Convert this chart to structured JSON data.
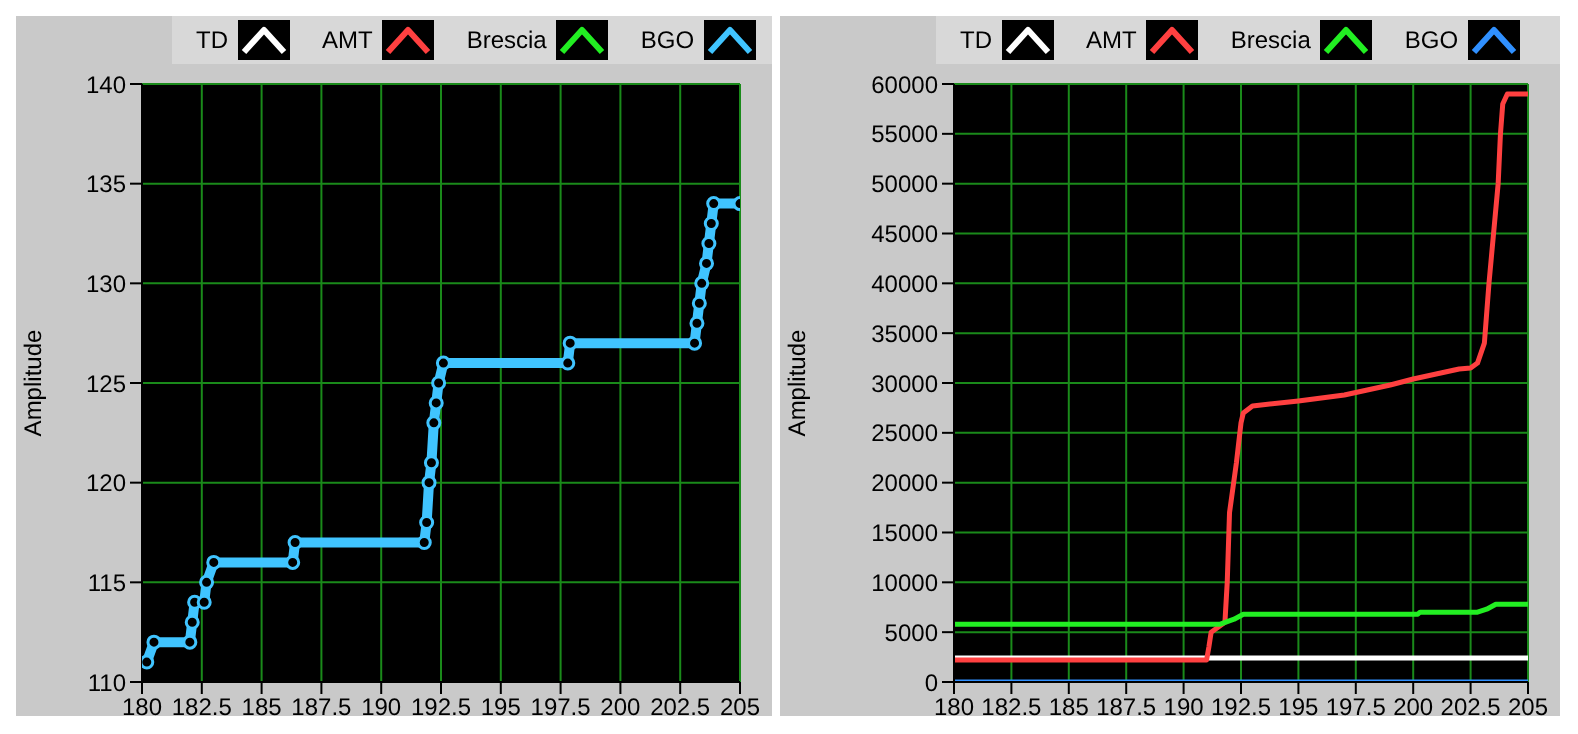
{
  "chart_data": [
    {
      "type": "line",
      "ylabel": "Amplitude",
      "xlim": [
        180,
        205
      ],
      "xticks": [
        180,
        182.5,
        185,
        187.5,
        190,
        192.5,
        195,
        197.5,
        200,
        202.5,
        205
      ],
      "ylim": [
        110,
        140
      ],
      "yticks": [
        110,
        115,
        120,
        125,
        130,
        135,
        140
      ],
      "grid": true,
      "legend": "top",
      "marker": "circle",
      "series": [
        {
          "name": "TD",
          "color": "#ffffff"
        },
        {
          "name": "AMT",
          "color": "#ff4040"
        },
        {
          "name": "Brescia",
          "color": "#22ee22"
        },
        {
          "name": "BGO",
          "color": "#40c4ff",
          "x": [
            180.2,
            180.5,
            182.0,
            182.1,
            182.2,
            182.6,
            182.7,
            183.0,
            186.3,
            186.4,
            191.8,
            191.9,
            192.0,
            192.1,
            192.2,
            192.3,
            192.4,
            192.6,
            197.8,
            197.9,
            203.1,
            203.2,
            203.3,
            203.4,
            203.6,
            203.7,
            203.8,
            203.9,
            205
          ],
          "values": [
            111,
            112,
            112,
            113,
            114,
            114,
            115,
            116,
            116,
            117,
            117,
            118,
            120,
            121,
            123,
            124,
            125,
            126,
            126,
            127,
            127,
            128,
            129,
            130,
            131,
            132,
            133,
            134,
            134
          ]
        }
      ]
    },
    {
      "type": "line",
      "ylabel": "Amplitude",
      "xlim": [
        180,
        205
      ],
      "xticks": [
        180,
        182.5,
        185,
        187.5,
        190,
        192.5,
        195,
        197.5,
        200,
        202.5,
        205
      ],
      "ylim": [
        0,
        60000
      ],
      "yticks": [
        0,
        5000,
        10000,
        15000,
        20000,
        25000,
        30000,
        35000,
        40000,
        45000,
        50000,
        55000,
        60000
      ],
      "grid": true,
      "legend": "top",
      "series": [
        {
          "name": "TD",
          "color": "#ffffff",
          "x": [
            180,
            205
          ],
          "values": [
            2400,
            2400
          ]
        },
        {
          "name": "AMT",
          "color": "#ff4040",
          "x": [
            180,
            191,
            191.1,
            191.2,
            191.8,
            191.9,
            192.0,
            192.3,
            192.5,
            192.6,
            193,
            195,
            197,
            199,
            200,
            202,
            202.5,
            202.8,
            203.1,
            203.3,
            203.5,
            203.7,
            203.8,
            203.9,
            204.1,
            205
          ],
          "values": [
            2200,
            2200,
            3500,
            5000,
            6000,
            10000,
            17000,
            22000,
            26000,
            27000,
            27700,
            28200,
            28800,
            29800,
            30400,
            31400,
            31500,
            32000,
            34000,
            40000,
            45000,
            50000,
            55000,
            58000,
            59000,
            59000
          ]
        },
        {
          "name": "Brescia",
          "color": "#22ee22",
          "x": [
            180,
            191.6,
            192.2,
            192.6,
            200.2,
            200.3,
            202.8,
            203.2,
            203.6,
            205
          ],
          "values": [
            5800,
            5800,
            6300,
            6800,
            6800,
            7000,
            7000,
            7300,
            7800,
            7800
          ]
        },
        {
          "name": "BGO",
          "color": "#3090ff",
          "x": [
            180,
            205
          ],
          "values": [
            0,
            0
          ]
        }
      ]
    }
  ]
}
